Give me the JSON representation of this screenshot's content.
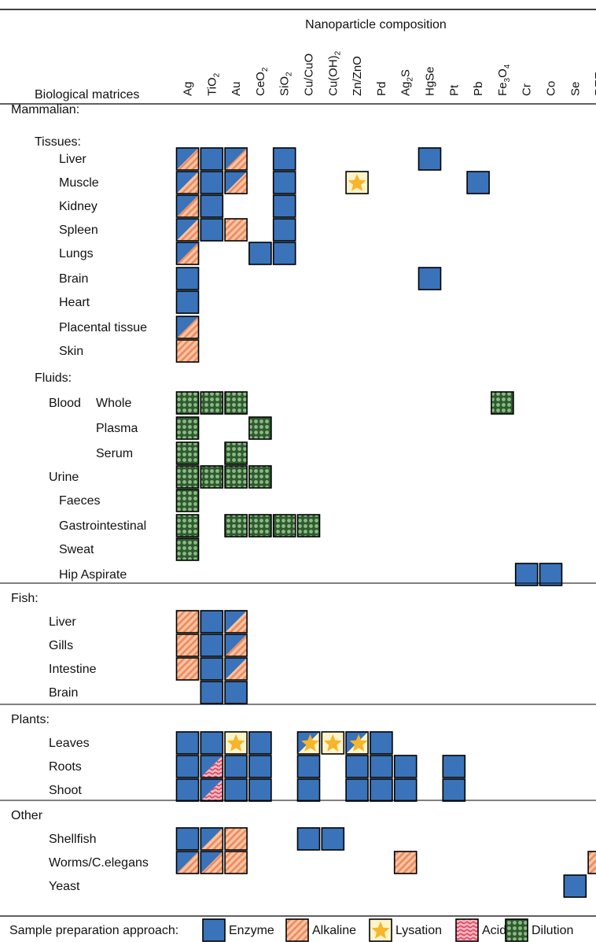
{
  "colors": {
    "enzyme": "#3a73b9",
    "alkaline_fill": "#f8c4a4",
    "alkaline_stripe": "#ef8a5c",
    "lysation_bg": "#fdf4c8",
    "lysation_star": "#f7b52c",
    "acid_fill": "#f7b8c2",
    "acid_wave": "#e2415a",
    "dilution_bg": "#2f5a2f",
    "dilution_dot": "#8bbb85"
  },
  "chart_data": {
    "type": "heatmap",
    "title": "Nanoparticle composition",
    "row_header": "Biological matrices",
    "columns": [
      {
        "id": "Ag",
        "label": "Ag"
      },
      {
        "id": "TiO2",
        "label": "TiO",
        "sub": "2"
      },
      {
        "id": "Au",
        "label": "Au"
      },
      {
        "id": "CeO2",
        "label": "CeO",
        "sub": "2"
      },
      {
        "id": "SiO2",
        "label": "SiO",
        "sub": "2"
      },
      {
        "id": "CuCuO",
        "label": "Cu/CuO"
      },
      {
        "id": "CuOH2",
        "label": "Cu(OH)",
        "sub": "2"
      },
      {
        "id": "ZnZnO",
        "label": "Zn/ZnO"
      },
      {
        "id": "Pd",
        "label": "Pd"
      },
      {
        "id": "Ag2S",
        "label": "Ag",
        "sub": "2",
        "tail": "S"
      },
      {
        "id": "HgSe",
        "label": "HgSe"
      },
      {
        "id": "Pt",
        "label": "Pt"
      },
      {
        "id": "Pb",
        "label": "Pb"
      },
      {
        "id": "Fe3O4",
        "label": "Fe",
        "sub": "3",
        "mid": "O",
        "sub2": "4"
      },
      {
        "id": "Cr",
        "label": "Cr"
      },
      {
        "id": "Co",
        "label": "Co"
      },
      {
        "id": "Se",
        "label": "Se"
      },
      {
        "id": "REE",
        "label": "REE"
      }
    ],
    "rows": [
      {
        "label": "Mammalian:",
        "level": 0,
        "kind": "group"
      },
      {
        "label": "Tissues:",
        "level": 1,
        "kind": "group"
      },
      {
        "label": "Liver",
        "level": 2,
        "cells": [
          [
            0,
            "enzyme/alkaline"
          ],
          [
            1,
            "enzyme"
          ],
          [
            2,
            "enzyme/alkaline"
          ],
          [
            4,
            "enzyme"
          ],
          [
            10,
            "enzyme"
          ]
        ]
      },
      {
        "label": "Muscle",
        "level": 2,
        "cells": [
          [
            0,
            "enzyme/alkaline"
          ],
          [
            1,
            "enzyme"
          ],
          [
            2,
            "enzyme/alkaline"
          ],
          [
            4,
            "enzyme"
          ],
          [
            7,
            "lysation"
          ],
          [
            12,
            "enzyme"
          ]
        ]
      },
      {
        "label": "Kidney",
        "level": 2,
        "cells": [
          [
            0,
            "enzyme/alkaline"
          ],
          [
            1,
            "enzyme"
          ],
          [
            4,
            "enzyme"
          ]
        ]
      },
      {
        "label": "Spleen",
        "level": 2,
        "cells": [
          [
            0,
            "enzyme/alkaline"
          ],
          [
            1,
            "enzyme"
          ],
          [
            2,
            "alkaline"
          ],
          [
            4,
            "enzyme"
          ]
        ]
      },
      {
        "label": "Lungs",
        "level": 2,
        "cells": [
          [
            0,
            "enzyme/alkaline"
          ],
          [
            3,
            "enzyme"
          ],
          [
            4,
            "enzyme"
          ]
        ]
      },
      {
        "label": "Brain",
        "level": 2,
        "cells": [
          [
            0,
            "enzyme"
          ],
          [
            10,
            "enzyme"
          ]
        ]
      },
      {
        "label": "Heart",
        "level": 2,
        "cells": [
          [
            0,
            "enzyme"
          ]
        ]
      },
      {
        "label": "Placental tissue",
        "level": 2,
        "cells": [
          [
            0,
            "enzyme/alkaline"
          ]
        ]
      },
      {
        "label": "Skin",
        "level": 2,
        "cells": [
          [
            0,
            "alkaline"
          ]
        ]
      },
      {
        "label": "Fluids:",
        "level": 1,
        "kind": "group"
      },
      {
        "label": "Blood",
        "label2": "Whole",
        "level": 3,
        "cells": [
          [
            0,
            "dilution"
          ],
          [
            1,
            "dilution"
          ],
          [
            2,
            "dilution"
          ],
          [
            13,
            "dilution"
          ]
        ]
      },
      {
        "label": "Plasma",
        "level": 4,
        "cells": [
          [
            0,
            "dilution"
          ],
          [
            3,
            "dilution"
          ]
        ]
      },
      {
        "label": "Serum",
        "level": 4,
        "cells": [
          [
            0,
            "dilution"
          ],
          [
            2,
            "dilution"
          ]
        ]
      },
      {
        "label": "Urine",
        "level": 3,
        "cells": [
          [
            0,
            "dilution"
          ],
          [
            1,
            "dilution"
          ],
          [
            2,
            "dilution"
          ],
          [
            3,
            "dilution"
          ]
        ]
      },
      {
        "label": "Faeces",
        "level": 2,
        "cells": [
          [
            0,
            "dilution"
          ]
        ]
      },
      {
        "label": "Gastrointestinal",
        "level": 2,
        "cells": [
          [
            0,
            "dilution"
          ],
          [
            2,
            "dilution"
          ],
          [
            3,
            "dilution"
          ],
          [
            4,
            "dilution"
          ],
          [
            5,
            "dilution"
          ]
        ]
      },
      {
        "label": "Sweat",
        "level": 2,
        "cells": [
          [
            0,
            "dilution"
          ]
        ]
      },
      {
        "label": "Hip Aspirate",
        "level": 2,
        "cells": [
          [
            14,
            "enzyme"
          ],
          [
            15,
            "enzyme"
          ]
        ]
      },
      {
        "label": "Fish:",
        "level": 0,
        "kind": "group"
      },
      {
        "label": "Liver",
        "level": 5,
        "cells": [
          [
            0,
            "alkaline"
          ],
          [
            1,
            "enzyme"
          ],
          [
            2,
            "enzyme/alkaline"
          ]
        ]
      },
      {
        "label": "Gills",
        "level": 5,
        "cells": [
          [
            0,
            "alkaline"
          ],
          [
            1,
            "enzyme"
          ],
          [
            2,
            "enzyme/alkaline"
          ]
        ]
      },
      {
        "label": "Intestine",
        "level": 5,
        "cells": [
          [
            0,
            "alkaline"
          ],
          [
            1,
            "enzyme"
          ],
          [
            2,
            "enzyme/alkaline"
          ]
        ]
      },
      {
        "label": "Brain",
        "level": 5,
        "cells": [
          [
            1,
            "enzyme"
          ],
          [
            2,
            "enzyme"
          ]
        ]
      },
      {
        "label": "Plants:",
        "level": 0,
        "kind": "group"
      },
      {
        "label": "Leaves",
        "level": 5,
        "cells": [
          [
            0,
            "enzyme"
          ],
          [
            1,
            "enzyme"
          ],
          [
            2,
            "lysation"
          ],
          [
            3,
            "enzyme"
          ],
          [
            5,
            "enzyme/lysation"
          ],
          [
            6,
            "lysation"
          ],
          [
            7,
            "enzyme/lysation"
          ],
          [
            8,
            "enzyme"
          ]
        ]
      },
      {
        "label": "Roots",
        "level": 5,
        "cells": [
          [
            0,
            "enzyme"
          ],
          [
            1,
            "enzyme/acid"
          ],
          [
            2,
            "enzyme"
          ],
          [
            3,
            "enzyme"
          ],
          [
            5,
            "enzyme"
          ],
          [
            7,
            "enzyme"
          ],
          [
            8,
            "enzyme"
          ],
          [
            9,
            "enzyme"
          ],
          [
            11,
            "enzyme"
          ]
        ]
      },
      {
        "label": "Shoot",
        "level": 5,
        "cells": [
          [
            0,
            "enzyme"
          ],
          [
            1,
            "enzyme/acid"
          ],
          [
            2,
            "enzyme"
          ],
          [
            3,
            "enzyme"
          ],
          [
            5,
            "enzyme"
          ],
          [
            7,
            "enzyme"
          ],
          [
            8,
            "enzyme"
          ],
          [
            9,
            "enzyme"
          ],
          [
            11,
            "enzyme"
          ]
        ]
      },
      {
        "label": "Other",
        "level": 0,
        "kind": "group"
      },
      {
        "label": "Shellfish",
        "level": 5,
        "cells": [
          [
            0,
            "enzyme"
          ],
          [
            1,
            "enzyme/alkaline"
          ],
          [
            2,
            "alkaline"
          ],
          [
            5,
            "enzyme"
          ],
          [
            6,
            "enzyme"
          ]
        ]
      },
      {
        "label": "Worms/C.elegans",
        "level": 5,
        "cells": [
          [
            0,
            "enzyme/alkaline"
          ],
          [
            1,
            "enzyme/alkaline"
          ],
          [
            2,
            "alkaline"
          ],
          [
            9,
            "alkaline"
          ],
          [
            17,
            "alkaline"
          ]
        ]
      },
      {
        "label": "Yeast",
        "level": 5,
        "cells": [
          [
            16,
            "enzyme"
          ]
        ]
      }
    ],
    "legend": {
      "title": "Sample preparation approach:",
      "items": [
        {
          "key": "enzyme",
          "label": "Enzyme"
        },
        {
          "key": "alkaline",
          "label": "Alkaline"
        },
        {
          "key": "lysation",
          "label": "Lysation"
        },
        {
          "key": "acid",
          "label": "Acid"
        },
        {
          "key": "dilution",
          "label": "Dilution"
        }
      ]
    }
  }
}
